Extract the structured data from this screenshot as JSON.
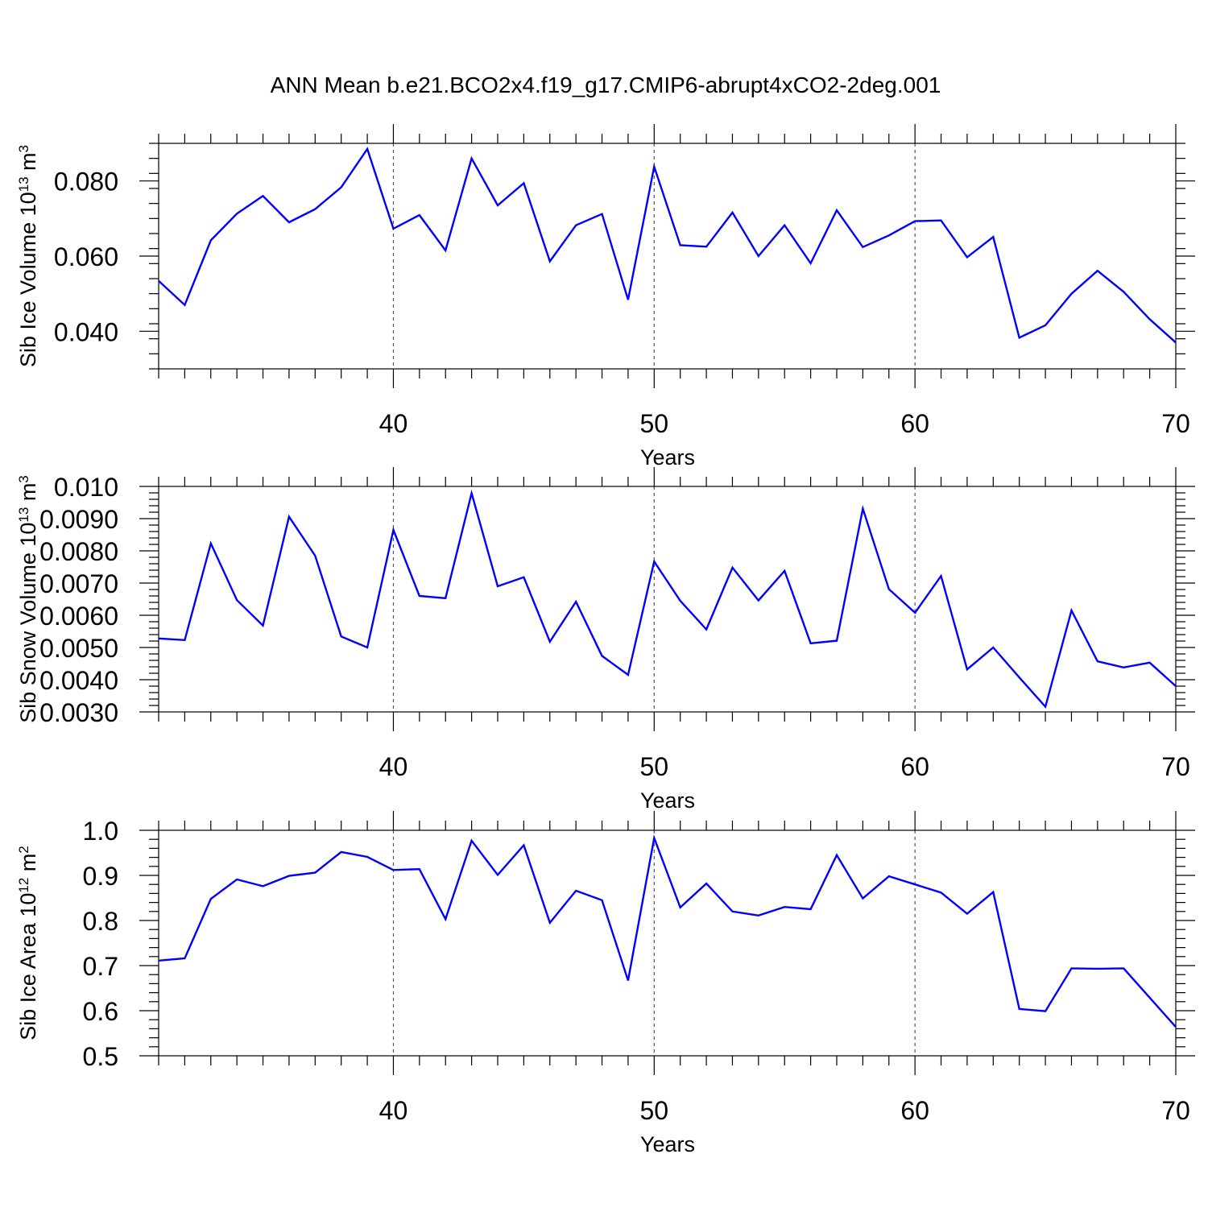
{
  "title": "ANN Mean b.e21.BCO2x4.f19_g17.CMIP6-abrupt4xCO2-2deg.001",
  "colors": {
    "series": "#0000ff",
    "axis": "#000000",
    "grid": "#555555"
  },
  "chart_data": [
    {
      "type": "line",
      "xlabel": "Years",
      "ylabel": {
        "text": "Sib Ice Volume 10",
        "exp": "13",
        "unit": " m",
        "unit_exp": "3"
      },
      "xlim": [
        31,
        70
      ],
      "ylim": [
        0.03,
        0.09
      ],
      "xticks": [
        40,
        50,
        60,
        70
      ],
      "xtick_labels": [
        "40",
        "50",
        "60",
        "70"
      ],
      "yticks": [
        0.04,
        0.06,
        0.08
      ],
      "ytick_labels": [
        "0.040",
        "0.060",
        "0.080"
      ],
      "grid_x": [
        40,
        50,
        60
      ],
      "x": [
        31,
        32,
        33,
        34,
        35,
        36,
        37,
        38,
        39,
        40,
        41,
        42,
        43,
        44,
        45,
        46,
        47,
        48,
        49,
        50,
        51,
        52,
        53,
        54,
        55,
        56,
        57,
        58,
        59,
        60,
        61,
        62,
        63,
        64,
        65,
        66,
        67,
        68,
        69,
        70
      ],
      "series": [
        {
          "values": [
            0.0534,
            0.047,
            0.0642,
            0.0713,
            0.076,
            0.069,
            0.0725,
            0.0783,
            0.0885,
            0.0673,
            0.0709,
            0.0615,
            0.086,
            0.0735,
            0.0794,
            0.0586,
            0.0682,
            0.0712,
            0.0484,
            0.0838,
            0.0629,
            0.0625,
            0.0716,
            0.06,
            0.0682,
            0.0581,
            0.0722,
            0.0624,
            0.0655,
            0.0693,
            0.0695,
            0.0597,
            0.0651,
            0.0383,
            0.0416,
            0.05,
            0.0561,
            0.0505,
            0.0432,
            0.037
          ]
        }
      ]
    },
    {
      "type": "line",
      "xlabel": "Years",
      "ylabel": {
        "text": "Sib Snow Volume 10",
        "exp": "13",
        "unit": " m",
        "unit_exp": "3"
      },
      "xlim": [
        31,
        70
      ],
      "ylim": [
        0.003,
        0.01
      ],
      "xticks": [
        40,
        50,
        60,
        70
      ],
      "xtick_labels": [
        "40",
        "50",
        "60",
        "70"
      ],
      "yticks": [
        0.003,
        0.004,
        0.005,
        0.006,
        0.007,
        0.008,
        0.009,
        0.01
      ],
      "ytick_labels": [
        "0.0030",
        "0.0040",
        "0.0050",
        "0.0060",
        "0.0070",
        "0.0080",
        "0.0090",
        "0.010"
      ],
      "grid_x": [
        40,
        50,
        60
      ],
      "x": [
        31,
        32,
        33,
        34,
        35,
        36,
        37,
        38,
        39,
        40,
        41,
        42,
        43,
        44,
        45,
        46,
        47,
        48,
        49,
        50,
        51,
        52,
        53,
        54,
        55,
        56,
        57,
        58,
        59,
        60,
        61,
        62,
        63,
        64,
        65,
        66,
        67,
        68,
        69,
        70
      ],
      "series": [
        {
          "values": [
            0.00528,
            0.00523,
            0.00823,
            0.00647,
            0.00568,
            0.00906,
            0.00785,
            0.00534,
            0.005,
            0.00865,
            0.0066,
            0.00653,
            0.00979,
            0.0069,
            0.00718,
            0.00518,
            0.00642,
            0.00474,
            0.00415,
            0.00767,
            0.00645,
            0.00556,
            0.00748,
            0.00646,
            0.00738,
            0.00513,
            0.00521,
            0.00931,
            0.00681,
            0.00608,
            0.00722,
            0.00432,
            0.005,
            0.00407,
            0.00316,
            0.00615,
            0.00457,
            0.00438,
            0.00453,
            0.0038
          ]
        }
      ]
    },
    {
      "type": "line",
      "xlabel": "Years",
      "ylabel": {
        "text": "Sib Ice Area 10",
        "exp": "12",
        "unit": " m",
        "unit_exp": "2"
      },
      "xlim": [
        31,
        70
      ],
      "ylim": [
        0.5,
        1.0
      ],
      "xticks": [
        40,
        50,
        60,
        70
      ],
      "xtick_labels": [
        "40",
        "50",
        "60",
        "70"
      ],
      "yticks": [
        0.5,
        0.6,
        0.7,
        0.8,
        0.9,
        1.0
      ],
      "ytick_labels": [
        "0.5",
        "0.6",
        "0.7",
        "0.8",
        "0.9",
        "1.0"
      ],
      "grid_x": [
        40,
        50,
        60
      ],
      "x": [
        31,
        32,
        33,
        34,
        35,
        36,
        37,
        38,
        39,
        40,
        41,
        42,
        43,
        44,
        45,
        46,
        47,
        48,
        49,
        50,
        51,
        52,
        53,
        54,
        55,
        56,
        57,
        58,
        59,
        60,
        61,
        62,
        63,
        64,
        65,
        66,
        67,
        68,
        69,
        70
      ],
      "series": [
        {
          "values": [
            0.711,
            0.716,
            0.848,
            0.891,
            0.876,
            0.899,
            0.906,
            0.952,
            0.941,
            0.912,
            0.914,
            0.803,
            0.977,
            0.901,
            0.967,
            0.795,
            0.866,
            0.845,
            0.667,
            0.983,
            0.829,
            0.882,
            0.82,
            0.811,
            0.83,
            0.825,
            0.945,
            0.849,
            0.898,
            0.88,
            0.862,
            0.815,
            0.863,
            0.604,
            0.599,
            0.694,
            0.693,
            0.694,
            0.629,
            0.564
          ]
        }
      ]
    }
  ]
}
